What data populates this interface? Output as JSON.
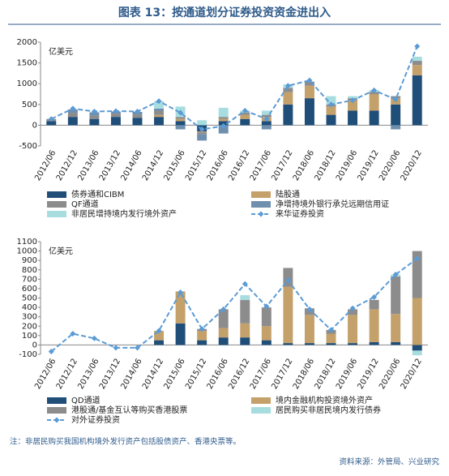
{
  "title": "图表 13：按通道划分证券投资资金进出入",
  "chart_data": [
    {
      "type": "bar",
      "ylabel": "亿美元",
      "categories": [
        "2012/06",
        "2012/12",
        "2013/06",
        "2013/12",
        "2014/06",
        "2014/12",
        "2015/06",
        "2015/12",
        "2016/06",
        "2016/12",
        "2017/06",
        "2017/12",
        "2018/06",
        "2018/12",
        "2019/06",
        "2019/12",
        "2020/06",
        "2020/12"
      ],
      "ylim": [
        -500,
        2000
      ],
      "yticks": [
        -500,
        0,
        500,
        1000,
        1500,
        2000
      ],
      "series": [
        {
          "name": "债券通和CIBM",
          "color": "#1f4e79",
          "values": [
            100,
            200,
            150,
            200,
            180,
            200,
            100,
            -150,
            100,
            150,
            100,
            500,
            650,
            250,
            350,
            350,
            500,
            1200
          ]
        },
        {
          "name": "陆股通",
          "color": "#c4a06b",
          "values": [
            0,
            0,
            0,
            0,
            0,
            50,
            50,
            -20,
            50,
            100,
            100,
            300,
            300,
            200,
            250,
            400,
            150,
            250
          ]
        },
        {
          "name": "QF通道",
          "color": "#8c8c8c",
          "values": [
            50,
            100,
            80,
            80,
            80,
            100,
            50,
            -50,
            50,
            50,
            50,
            100,
            100,
            50,
            50,
            50,
            50,
            100
          ]
        },
        {
          "name": "净增持境外银行承兑远期信用证",
          "color": "#6f8fae",
          "values": [
            0,
            80,
            80,
            50,
            60,
            50,
            -100,
            -150,
            -200,
            0,
            -100,
            0,
            0,
            0,
            0,
            0,
            -100,
            0
          ]
        },
        {
          "name": "非居民增持境内发行境外资产",
          "color": "#a8dde0",
          "values": [
            0,
            0,
            0,
            0,
            0,
            180,
            250,
            120,
            220,
            50,
            100,
            80,
            0,
            200,
            50,
            50,
            0,
            100
          ]
        },
        {
          "name": "来华证券投资",
          "color": "#5b9bd5",
          "type": "line",
          "dashed": true,
          "marker": "diamond",
          "values": [
            150,
            400,
            330,
            340,
            330,
            580,
            300,
            -100,
            -20,
            350,
            150,
            950,
            1080,
            500,
            600,
            840,
            620,
            1900
          ]
        }
      ]
    },
    {
      "type": "bar",
      "ylabel": "亿美元",
      "categories": [
        "2012/06",
        "2012/12",
        "2013/06",
        "2013/12",
        "2014/06",
        "2014/12",
        "2015/06",
        "2015/12",
        "2016/06",
        "2016/12",
        "2017/06",
        "2017/12",
        "2018/06",
        "2018/12",
        "2019/06",
        "2019/12",
        "2020/06",
        "2020/12"
      ],
      "ylim": [
        -100,
        1100
      ],
      "yticks": [
        -100,
        0,
        100,
        200,
        300,
        400,
        500,
        600,
        700,
        800,
        900,
        1000,
        1100
      ],
      "series": [
        {
          "name": "QD通道",
          "color": "#1f4e79",
          "values": [
            0,
            0,
            0,
            0,
            0,
            50,
            230,
            50,
            80,
            80,
            50,
            20,
            20,
            20,
            20,
            30,
            30,
            -60
          ]
        },
        {
          "name": "境内金融机构投资境外资产",
          "color": "#c4a06b",
          "values": [
            0,
            0,
            0,
            0,
            0,
            100,
            340,
            100,
            100,
            150,
            150,
            600,
            300,
            100,
            300,
            350,
            300,
            500
          ]
        },
        {
          "name": "港股通/基金互认等购买香港股票",
          "color": "#8c8c8c",
          "values": [
            0,
            0,
            0,
            0,
            0,
            0,
            0,
            20,
            200,
            250,
            200,
            200,
            70,
            40,
            60,
            100,
            400,
            500
          ]
        },
        {
          "name": "居民购买非居民境内发行债券",
          "color": "#a8dde0",
          "values": [
            0,
            0,
            0,
            0,
            0,
            0,
            0,
            0,
            0,
            50,
            0,
            0,
            0,
            0,
            0,
            0,
            20,
            -50
          ]
        },
        {
          "name": "对外证券投资",
          "color": "#5b9bd5",
          "type": "line",
          "dashed": true,
          "marker": "diamond",
          "values": [
            -70,
            120,
            70,
            -30,
            -30,
            150,
            560,
            170,
            380,
            650,
            410,
            690,
            380,
            160,
            390,
            510,
            750,
            920
          ]
        }
      ]
    }
  ],
  "note": "注：非居民购买我国机构境外发行资产包括股债资产、香港央票等。",
  "source": "资料来源：外管局、兴业研究"
}
